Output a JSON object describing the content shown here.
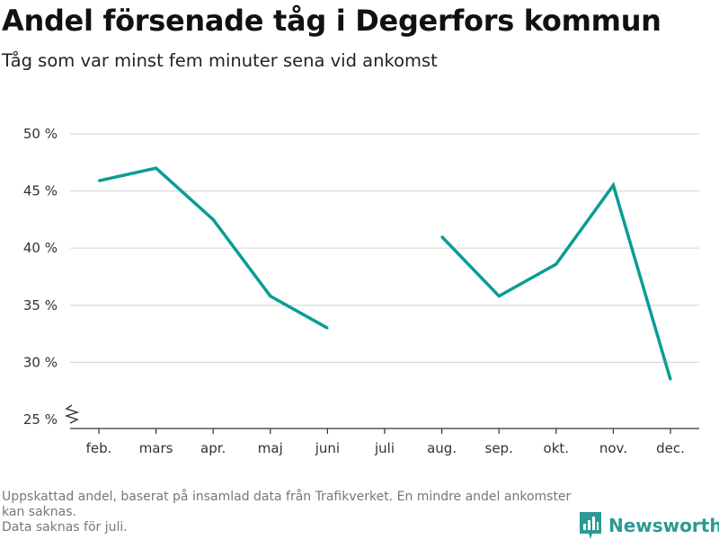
{
  "header": {
    "title": "Andel försenade tåg i Degerfors kommun",
    "subtitle": "Tåg som var minst fem minuter sena vid ankomst"
  },
  "footnote": {
    "lines": [
      "Uppskattad andel, baserat på insamlad data från Trafikverket. En mindre andel ankomster kan saknas.",
      "Data saknas för juli."
    ]
  },
  "brand": {
    "name": "Newsworthy",
    "logo_icon": "newsworthy-bar-chart-icon"
  },
  "colors": {
    "line": "#0a9d94",
    "grid": "#d9d9d9",
    "axis": "#333333"
  },
  "chart_data": {
    "type": "line",
    "title": "Andel försenade tåg i Degerfors kommun",
    "subtitle": "Tåg som var minst fem minuter sena vid ankomst",
    "xlabel": "",
    "ylabel": "",
    "categories": [
      "feb.",
      "mars",
      "apr.",
      "maj",
      "juni",
      "juli",
      "aug.",
      "sep.",
      "okt.",
      "nov.",
      "dec."
    ],
    "yticks": [
      25,
      30,
      35,
      40,
      45,
      50
    ],
    "ytick_labels": [
      "25 %",
      "30 %",
      "35 %",
      "40 %",
      "45 %",
      "50 %"
    ],
    "ylim": [
      25,
      50
    ],
    "y_axis_break": true,
    "grid": true,
    "legend": "none",
    "series": [
      {
        "values": [
          45.9,
          47.0,
          42.5,
          35.8,
          33.0,
          null,
          41.0,
          35.8,
          38.6,
          45.5,
          28.5
        ]
      }
    ]
  }
}
